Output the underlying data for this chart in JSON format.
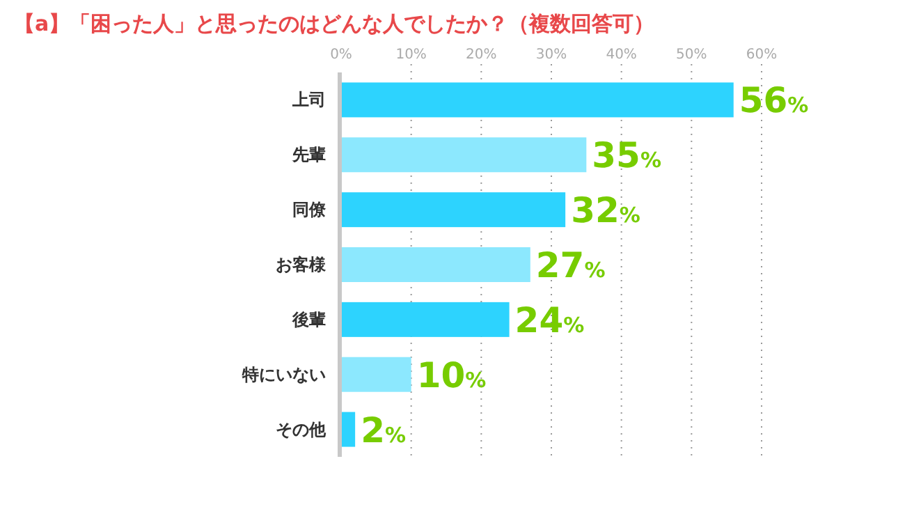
{
  "chart_data": {
    "type": "bar",
    "orientation": "horizontal",
    "title": "【a】「困った人」と思ったのはどんな人でしたか？（複数回答可）",
    "categories": [
      "上司",
      "先輩",
      "同僚",
      "お客様",
      "後輩",
      "特にいない",
      "その他"
    ],
    "values": [
      56,
      35,
      32,
      27,
      24,
      10,
      2
    ],
    "colors": [
      "#2dd3fe",
      "#8ce8fe",
      "#2dd3fe",
      "#8ce8fe",
      "#2dd3fe",
      "#8ce8fe",
      "#2dd3fe"
    ],
    "value_labels": [
      "56%",
      "35%",
      "32%",
      "27%",
      "24%",
      "10%",
      "2%"
    ],
    "xlim": [
      0,
      60
    ],
    "xticks": [
      {
        "value": 0,
        "label": "0%"
      },
      {
        "value": 10,
        "label": "10%"
      },
      {
        "value": 20,
        "label": "20%"
      },
      {
        "value": 30,
        "label": "30%"
      },
      {
        "value": 40,
        "label": "40%"
      },
      {
        "value": 50,
        "label": "50%"
      },
      {
        "value": 60,
        "label": "60%"
      }
    ],
    "grid": "x"
  }
}
